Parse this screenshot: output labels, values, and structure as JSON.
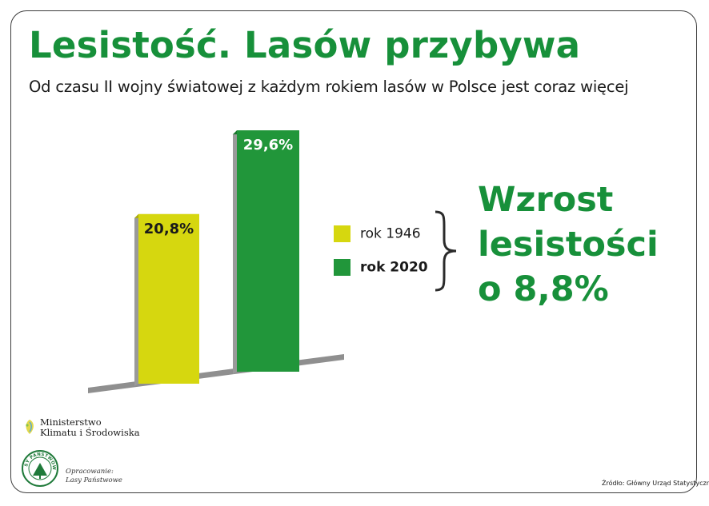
{
  "header": {
    "title": "Lesistość. Lasów przybywa",
    "subtitle": "Od czasu II wojny światowej z każdym rokiem lasów w Polsce jest coraz więcej"
  },
  "chart_data": {
    "type": "bar",
    "categories": [
      "rok 1946",
      "rok 2020"
    ],
    "values": [
      20.8,
      29.6
    ],
    "data_labels": [
      "20,8%",
      "29,6%"
    ],
    "colors": [
      "#d6d70f",
      "#21963a"
    ],
    "grid": false,
    "legend": "right"
  },
  "legend": [
    {
      "label": "rok 1946",
      "color": "#d6d70f"
    },
    {
      "label": "rok 2020",
      "color": "#21963a"
    }
  ],
  "callout": {
    "line1": "Wzrost",
    "line2": "lesistości",
    "line3": "o 8,8%"
  },
  "footer": {
    "ministry_line1": "Ministerstwo",
    "ministry_line2": "Klimatu i Środowiska",
    "logo_text": "LASY PAŃSTWOWE",
    "prepared_line1": "Opracowanie:",
    "prepared_line2": "Lasy Państwowe",
    "source": "Źródło: Główny Urząd Statystyczny"
  },
  "colors": {
    "accent": "#17903a",
    "bar_1946": "#d6d70f",
    "bar_2020": "#21963a"
  }
}
